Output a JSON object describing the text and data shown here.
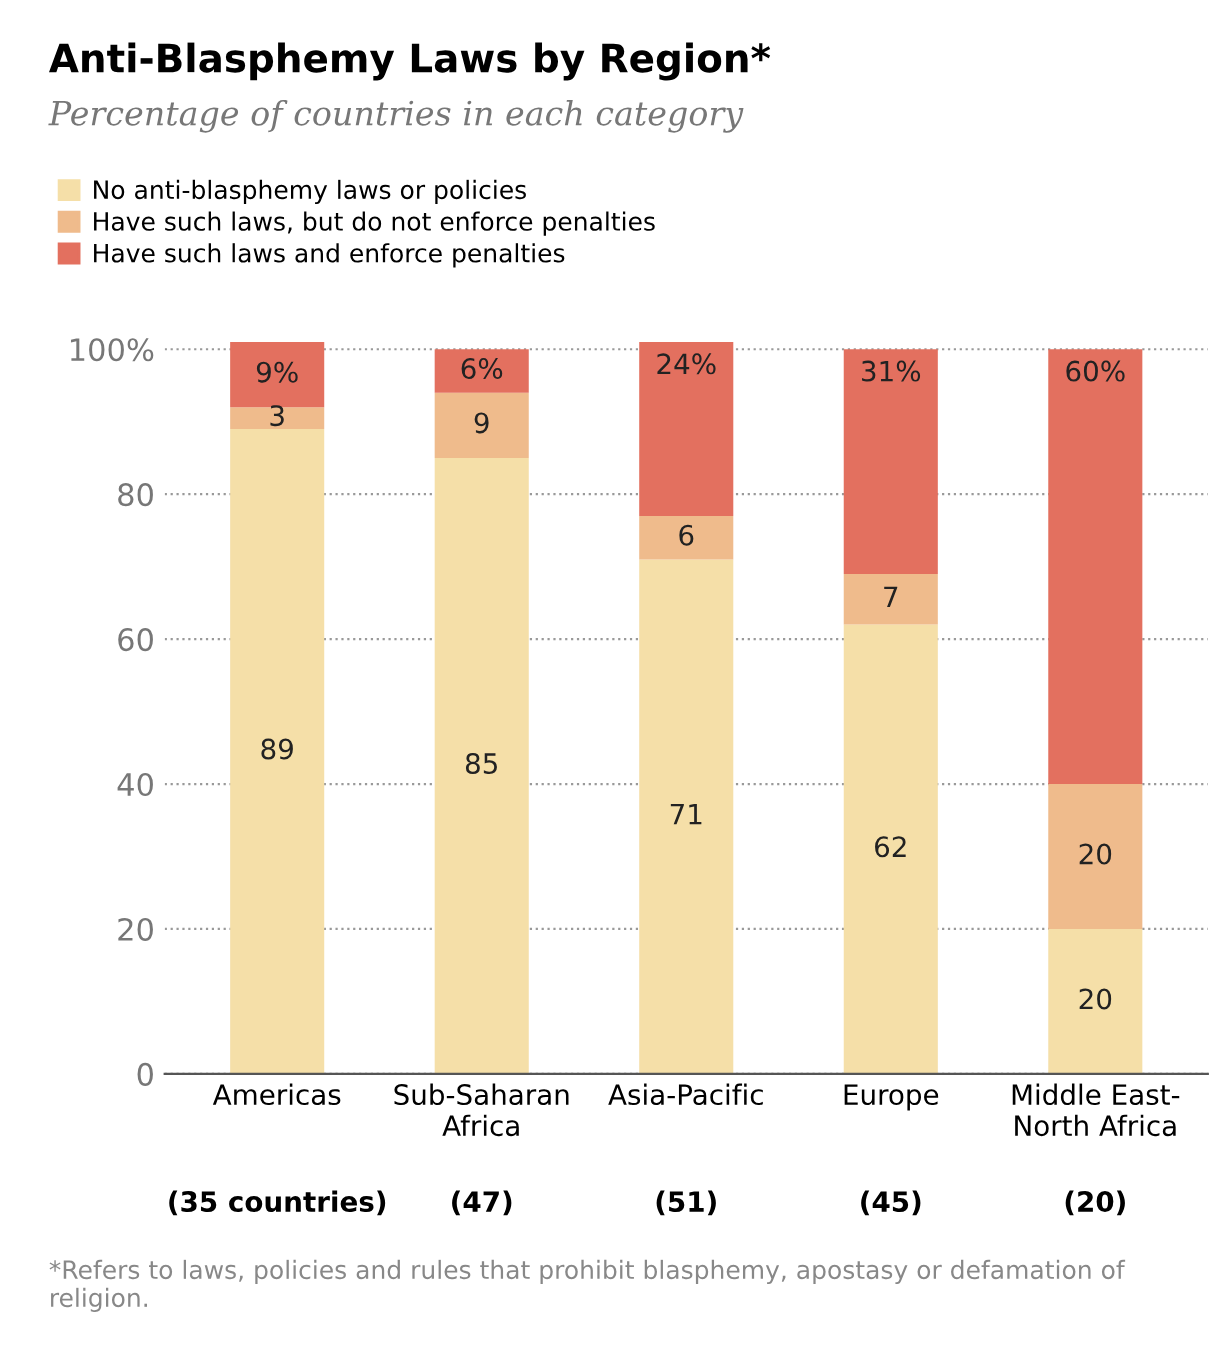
{
  "chart_data": {
    "type": "bar",
    "title": "Anti-Blasphemy Laws by Region*",
    "subtitle": "Percentage of countries in each category",
    "categories": [
      "Americas",
      "Sub-Saharan\nAfrica",
      "Asia-Pacific",
      "Europe",
      "Middle East-\nNorth Africa"
    ],
    "stacked": true,
    "series": [
      {
        "name": "No anti-blasphemy laws or policies",
        "color": "#f5dfa8",
        "values": [
          89,
          85,
          71,
          62,
          20
        ],
        "value_labels": [
          "89",
          "85",
          "71",
          "62",
          "20"
        ]
      },
      {
        "name": "Have such laws, but do not enforce penalties",
        "color": "#efbb8c",
        "values": [
          3,
          9,
          6,
          7,
          20
        ],
        "value_labels": [
          "3",
          "9",
          "6",
          "7",
          "20"
        ]
      },
      {
        "name": "Have such laws and enforce penalties",
        "color": "#e3705f",
        "values": [
          9,
          6,
          24,
          31,
          60
        ],
        "value_labels": [
          "9%",
          "6%",
          "24%",
          "31%",
          "60%"
        ]
      }
    ],
    "ylim": [
      0,
      101
    ],
    "yticks": [
      0,
      20,
      40,
      60,
      80,
      {
        "value": 100,
        "label": "100%"
      }
    ],
    "grid": "y",
    "legend": "top left",
    "annotations": [
      "(35 countries)",
      "(47)",
      "(51)",
      "(45)",
      "(20)",
      "*Refers to laws, policies and rules that prohibit blasphemy, apostasy or defamation of religion."
    ]
  }
}
